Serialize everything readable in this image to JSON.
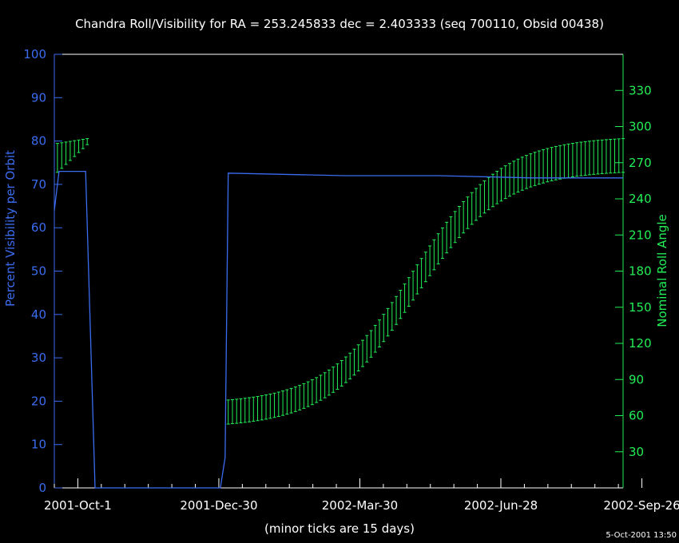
{
  "chart_data": {
    "type": "line",
    "title": "Chandra Roll/Visibility for RA = 253.245833 dec = 2.403333 (seq 700110, Obsid 00438)",
    "xlabel": "(minor ticks are 15 days)",
    "ylabel": "Percent Visibility per Orbit",
    "y2label": "Nominal Roll Angle",
    "footer": "5-Oct-2001 13:50",
    "x_tick_labels": [
      "2001-Oct-1",
      "2001-Dec-30",
      "2002-Mar-30",
      "2002-Jun-28",
      "2002-Sep-26"
    ],
    "x_tick_days": [
      0,
      90,
      180,
      270,
      360
    ],
    "xlim_days": [
      -15,
      348
    ],
    "ylim": [
      0,
      100
    ],
    "y_ticks": [
      0,
      10,
      20,
      30,
      40,
      50,
      60,
      70,
      80,
      90,
      100
    ],
    "y2lim": [
      0,
      360
    ],
    "y2_ticks": [
      30,
      60,
      90,
      120,
      150,
      180,
      210,
      240,
      270,
      300,
      330
    ],
    "colors": {
      "visibility": "#3b6cf0",
      "roll": "#22ee55",
      "frame": "#ffffff",
      "text": "#ffffff"
    },
    "series": [
      {
        "name": "Percent Visibility per Orbit",
        "axis": "left",
        "x_days": [
          -15,
          -12,
          -7,
          5,
          11,
          91,
          94,
          96,
          170,
          230,
          290,
          348
        ],
        "values": [
          64,
          73,
          73,
          73,
          0,
          0,
          7,
          72.6,
          72,
          72,
          71.5,
          71.5
        ]
      },
      {
        "name": "Nominal Roll Angle",
        "axis": "right",
        "type": "errorbar",
        "segments": [
          {
            "x_start": -13,
            "x_end": 6,
            "points": 8,
            "low_start": 262,
            "low_end": 285,
            "high_start": 286,
            "high_end": 290
          },
          {
            "x_start": 96,
            "x_end": 348,
            "points": 95,
            "curve": "logistic",
            "low_range": [
              53,
              262
            ],
            "high_range": [
              73,
              290
            ]
          }
        ]
      }
    ],
    "grid": false,
    "legend": "none"
  }
}
